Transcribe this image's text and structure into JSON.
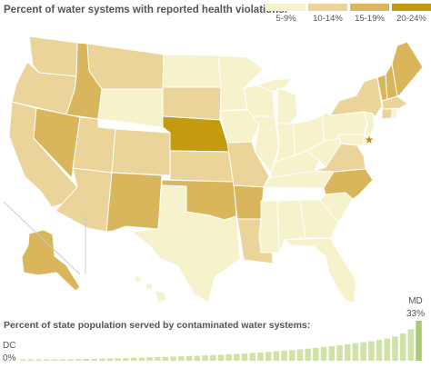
{
  "title": "Percent of water systems with reported health violations:",
  "legend": {
    "items": [
      {
        "label": "5-9%",
        "color": "#f6f2cc"
      },
      {
        "label": "10-14%",
        "color": "#ead49a"
      },
      {
        "label": "15-19%",
        "color": "#d9b65c"
      },
      {
        "label": "20-24%",
        "color": "#c49a0e"
      }
    ]
  },
  "map": {
    "states": [
      {
        "id": "WA",
        "class": 1
      },
      {
        "id": "OR",
        "class": 1
      },
      {
        "id": "CA",
        "class": 1
      },
      {
        "id": "ID",
        "class": 2
      },
      {
        "id": "NV",
        "class": 2
      },
      {
        "id": "MT",
        "class": 1
      },
      {
        "id": "WY",
        "class": 0
      },
      {
        "id": "UT",
        "class": 1
      },
      {
        "id": "AZ",
        "class": 1
      },
      {
        "id": "CO",
        "class": 1
      },
      {
        "id": "NM",
        "class": 2
      },
      {
        "id": "ND",
        "class": 0
      },
      {
        "id": "SD",
        "class": 1
      },
      {
        "id": "NE",
        "class": 3
      },
      {
        "id": "KS",
        "class": 1
      },
      {
        "id": "OK",
        "class": 2
      },
      {
        "id": "TX",
        "class": 0
      },
      {
        "id": "MN",
        "class": 0
      },
      {
        "id": "IA",
        "class": 0
      },
      {
        "id": "MO",
        "class": 1
      },
      {
        "id": "AR",
        "class": 2
      },
      {
        "id": "LA",
        "class": 1
      },
      {
        "id": "WI",
        "class": 0
      },
      {
        "id": "IL",
        "class": 0
      },
      {
        "id": "MS",
        "class": 0
      },
      {
        "id": "MI",
        "class": 0
      },
      {
        "id": "IN",
        "class": 0
      },
      {
        "id": "KY",
        "class": 0
      },
      {
        "id": "TN",
        "class": 0
      },
      {
        "id": "AL",
        "class": 0
      },
      {
        "id": "OH",
        "class": 0
      },
      {
        "id": "GA",
        "class": 0
      },
      {
        "id": "FL",
        "class": 0
      },
      {
        "id": "WV",
        "class": 0
      },
      {
        "id": "VA",
        "class": 1
      },
      {
        "id": "NC",
        "class": 2
      },
      {
        "id": "SC",
        "class": 0
      },
      {
        "id": "PA",
        "class": 0
      },
      {
        "id": "NY",
        "class": 1
      },
      {
        "id": "VT",
        "class": 2
      },
      {
        "id": "NH",
        "class": 2
      },
      {
        "id": "ME",
        "class": 2
      },
      {
        "id": "MA",
        "class": 1
      },
      {
        "id": "CT",
        "class": 1
      },
      {
        "id": "RI",
        "class": 0
      },
      {
        "id": "NJ",
        "class": 0
      },
      {
        "id": "DE",
        "class": 0
      },
      {
        "id": "MD",
        "class": 0
      },
      {
        "id": "AK",
        "class": 2
      },
      {
        "id": "HI",
        "class": 0
      }
    ],
    "highlight": {
      "state": "MD",
      "marker": "star"
    }
  },
  "population": {
    "subtitle": "Percent of state population served by contaminated water systems:",
    "min": {
      "state": "DC",
      "value": "0%",
      "pct": 0
    },
    "max": {
      "state": "MD",
      "value": "33%",
      "pct": 33
    },
    "bar_color": "#cfe3a6",
    "bar_highlight_color": "#a7cc74",
    "values": [
      0,
      0.3,
      0.5,
      0.7,
      0.9,
      1.0,
      1.2,
      1.3,
      1.5,
      1.6,
      1.8,
      1.9,
      2.1,
      2.2,
      2.4,
      2.6,
      2.8,
      3.0,
      3.2,
      3.4,
      3.6,
      3.9,
      4.1,
      4.4,
      4.7,
      5.0,
      5.3,
      5.6,
      6.0,
      6.4,
      6.8,
      7.3,
      7.8,
      8.3,
      8.8,
      9.4,
      10.0,
      10.6,
      11.3,
      12.0,
      12.8,
      13.6,
      14.4,
      15.3,
      16.2,
      17.2,
      18.4,
      20.0,
      22.5,
      26.0,
      33.0
    ]
  }
}
